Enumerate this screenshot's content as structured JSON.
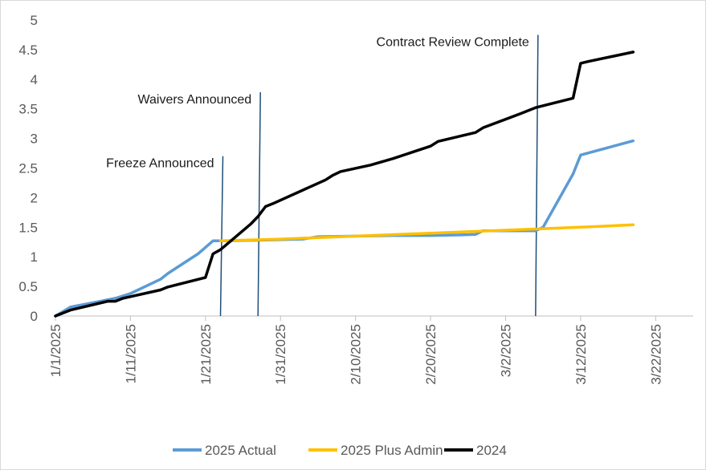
{
  "chart_data": {
    "type": "line",
    "title": "",
    "xlabel": "",
    "ylabel": "",
    "x_axis": {
      "type": "date",
      "range": [
        "2025-01-01",
        "2025-03-27"
      ],
      "tick_dates": [
        "2025-01-01",
        "2025-01-11",
        "2025-01-21",
        "2025-01-31",
        "2025-02-10",
        "2025-02-20",
        "2025-03-02",
        "2025-03-12",
        "2025-03-22"
      ],
      "tick_labels": [
        "1/1/2025",
        "1/11/2025",
        "1/21/2025",
        "1/31/2025",
        "2/10/2025",
        "2/20/2025",
        "3/2/2025",
        "3/12/2025",
        "3/22/2025"
      ]
    },
    "y_axis": {
      "range": [
        0,
        5
      ],
      "ticks": [
        0,
        0.5,
        1,
        1.5,
        2,
        2.5,
        3,
        3.5,
        4,
        4.5,
        5
      ],
      "tick_labels": [
        "0",
        "0.5",
        "1",
        "1.5",
        "2",
        "2.5",
        "3",
        "3.5",
        "4",
        "4.5",
        "5"
      ]
    },
    "grid": false,
    "legend": {
      "position": "bottom",
      "entries": [
        "2025 Actual",
        "2025 Plus Admin",
        "2024"
      ]
    },
    "series": [
      {
        "name": "2025 Actual",
        "color": "#5b9bd5",
        "points": [
          [
            "2025-01-01",
            0
          ],
          [
            "2025-01-03",
            0.15
          ],
          [
            "2025-01-09",
            0.3
          ],
          [
            "2025-01-11",
            0.38
          ],
          [
            "2025-01-15",
            0.62
          ],
          [
            "2025-01-16",
            0.72
          ],
          [
            "2025-01-20",
            1.05
          ],
          [
            "2025-01-22",
            1.27
          ],
          [
            "2025-01-24",
            1.27
          ],
          [
            "2025-01-28",
            1.28
          ],
          [
            "2025-02-03",
            1.3
          ],
          [
            "2025-02-05",
            1.34
          ],
          [
            "2025-02-10",
            1.35
          ],
          [
            "2025-02-15",
            1.36
          ],
          [
            "2025-02-20",
            1.36
          ],
          [
            "2025-02-24",
            1.37
          ],
          [
            "2025-02-26",
            1.38
          ],
          [
            "2025-02-27",
            1.44
          ],
          [
            "2025-03-06",
            1.44
          ],
          [
            "2025-03-07",
            1.5
          ],
          [
            "2025-03-11",
            2.4
          ],
          [
            "2025-03-12",
            2.72
          ],
          [
            "2025-03-19",
            2.96
          ]
        ]
      },
      {
        "name": "2025 Plus Admin",
        "color": "#ffc000",
        "points": [
          [
            "2025-01-23",
            1.27
          ],
          [
            "2025-01-31",
            1.3
          ],
          [
            "2025-02-10",
            1.35
          ],
          [
            "2025-02-20",
            1.4
          ],
          [
            "2025-03-02",
            1.45
          ],
          [
            "2025-03-06",
            1.47
          ],
          [
            "2025-03-12",
            1.5
          ],
          [
            "2025-03-19",
            1.54
          ]
        ]
      },
      {
        "name": "2024",
        "color": "#000000",
        "points": [
          [
            "2025-01-01",
            0
          ],
          [
            "2025-01-03",
            0.1
          ],
          [
            "2025-01-08",
            0.25
          ],
          [
            "2025-01-09",
            0.25
          ],
          [
            "2025-01-10",
            0.3
          ],
          [
            "2025-01-15",
            0.44
          ],
          [
            "2025-01-16",
            0.49
          ],
          [
            "2025-01-21",
            0.65
          ],
          [
            "2025-01-22",
            1.05
          ],
          [
            "2025-01-23",
            1.12
          ],
          [
            "2025-01-27",
            1.55
          ],
          [
            "2025-01-28",
            1.68
          ],
          [
            "2025-01-29",
            1.85
          ],
          [
            "2025-01-30",
            1.9
          ],
          [
            "2025-02-06",
            2.3
          ],
          [
            "2025-02-07",
            2.38
          ],
          [
            "2025-02-08",
            2.44
          ],
          [
            "2025-02-12",
            2.55
          ],
          [
            "2025-02-15",
            2.66
          ],
          [
            "2025-02-20",
            2.87
          ],
          [
            "2025-02-21",
            2.95
          ],
          [
            "2025-02-26",
            3.1
          ],
          [
            "2025-02-27",
            3.18
          ],
          [
            "2025-03-04",
            3.42
          ],
          [
            "2025-03-06",
            3.52
          ],
          [
            "2025-03-11",
            3.68
          ],
          [
            "2025-03-12",
            4.27
          ],
          [
            "2025-03-13",
            4.3
          ],
          [
            "2025-03-19",
            4.46
          ]
        ]
      }
    ],
    "annotations": [
      {
        "label": "Freeze Announced",
        "line_x": "2025-01-23",
        "line_top_y": 2.7,
        "line_color": "#1f4e79"
      },
      {
        "label": "Waivers Announced",
        "line_x": "2025-01-28",
        "line_top_y": 3.78,
        "line_color": "#1f4e79"
      },
      {
        "label": "Contract Review Complete",
        "line_x": "2025-03-06",
        "line_top_y": 4.75,
        "line_color": "#1f4e79"
      }
    ]
  }
}
